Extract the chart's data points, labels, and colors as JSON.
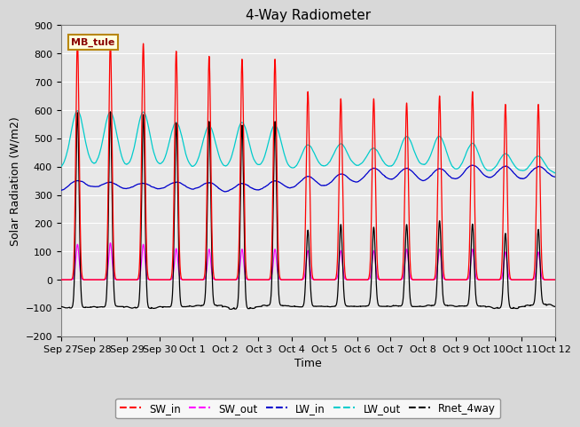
{
  "title": "4-Way Radiometer",
  "xlabel": "Time",
  "ylabel": "Solar Radiation (W/m2)",
  "ylim": [
    -200,
    900
  ],
  "yticks": [
    -200,
    -100,
    0,
    100,
    200,
    300,
    400,
    500,
    600,
    700,
    800,
    900
  ],
  "x_tick_labels": [
    "Sep 27",
    "Sep 28",
    "Sep 29",
    "Sep 30",
    "Oct 1",
    "Oct 2",
    "Oct 3",
    "Oct 4",
    "Oct 5",
    "Oct 6",
    "Oct 7",
    "Oct 8",
    "Oct 9",
    "Oct 10",
    "Oct 11",
    "Oct 12"
  ],
  "station_label": "MB_tule",
  "colors": {
    "SW_in": "#ff0000",
    "SW_out": "#ff00ff",
    "LW_in": "#0000cc",
    "LW_out": "#00cccc",
    "Rnet_4way": "#000000"
  },
  "plot_bg_color": "#e8e8e8",
  "fig_bg_color": "#d8d8d8",
  "title_fontsize": 11,
  "label_fontsize": 9,
  "tick_fontsize": 8,
  "sw_peaks": [
    845,
    840,
    835,
    808,
    790,
    780,
    780,
    665,
    640,
    640,
    625,
    650,
    665,
    620,
    620
  ],
  "sw_out_peaks": [
    125,
    130,
    125,
    110,
    108,
    108,
    108,
    103,
    103,
    103,
    108,
    108,
    108,
    98,
    98
  ],
  "lw_in_base": 315,
  "lw_out_base": 390,
  "rnet_night": -95
}
